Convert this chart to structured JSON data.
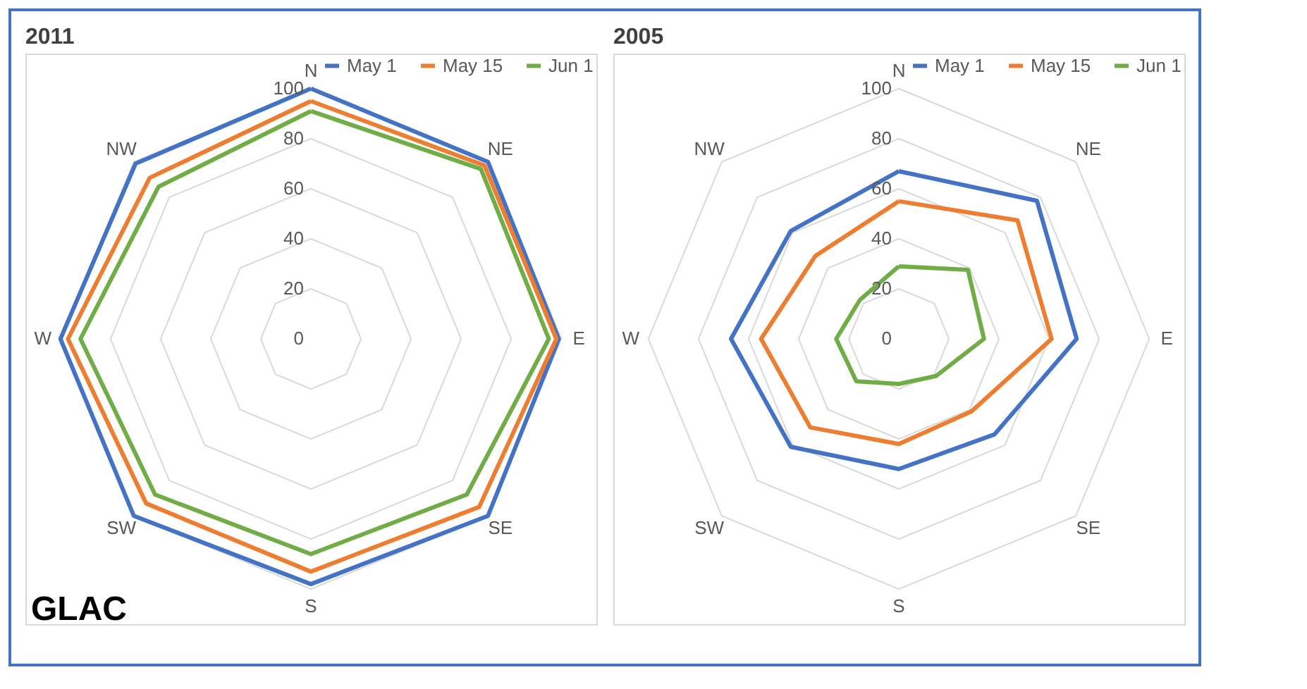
{
  "chart_data": [
    {
      "type": "radar",
      "title": "2011",
      "categories": [
        "N",
        "NE",
        "E",
        "SE",
        "S",
        "SW",
        "W",
        "NW"
      ],
      "ylim": [
        0,
        100
      ],
      "yticks": [
        0,
        20,
        40,
        60,
        80,
        100
      ],
      "grid": true,
      "legend": "top right",
      "marker": "none",
      "annotations": [
        "GLAC"
      ],
      "series": [
        {
          "name": "May 1",
          "color": "#4472c4",
          "values": [
            100,
            100,
            99,
            100,
            98,
            100,
            100,
            99
          ]
        },
        {
          "name": "May 15",
          "color": "#ed7d31",
          "values": [
            95,
            98,
            98,
            95,
            93,
            93,
            97,
            91
          ]
        },
        {
          "name": "Jun 1",
          "color": "#70ad47",
          "values": [
            91,
            96,
            95,
            88,
            86,
            88,
            92,
            86
          ]
        }
      ]
    },
    {
      "type": "radar",
      "title": "2005",
      "categories": [
        "N",
        "NE",
        "E",
        "SE",
        "S",
        "SW",
        "W",
        "NW"
      ],
      "ylim": [
        0,
        100
      ],
      "yticks": [
        0,
        20,
        40,
        60,
        80,
        100
      ],
      "grid": true,
      "legend": "top right",
      "marker": "none",
      "series": [
        {
          "name": "May 1",
          "color": "#4472c4",
          "values": [
            67,
            78,
            71,
            54,
            52,
            61,
            67,
            61
          ]
        },
        {
          "name": "May 15",
          "color": "#ed7d31",
          "values": [
            55,
            67,
            61,
            41,
            42,
            50,
            55,
            47
          ]
        },
        {
          "name": "Jun 1",
          "color": "#70ad47",
          "values": [
            29,
            39,
            34,
            21,
            18,
            24,
            25,
            22
          ]
        }
      ]
    }
  ]
}
